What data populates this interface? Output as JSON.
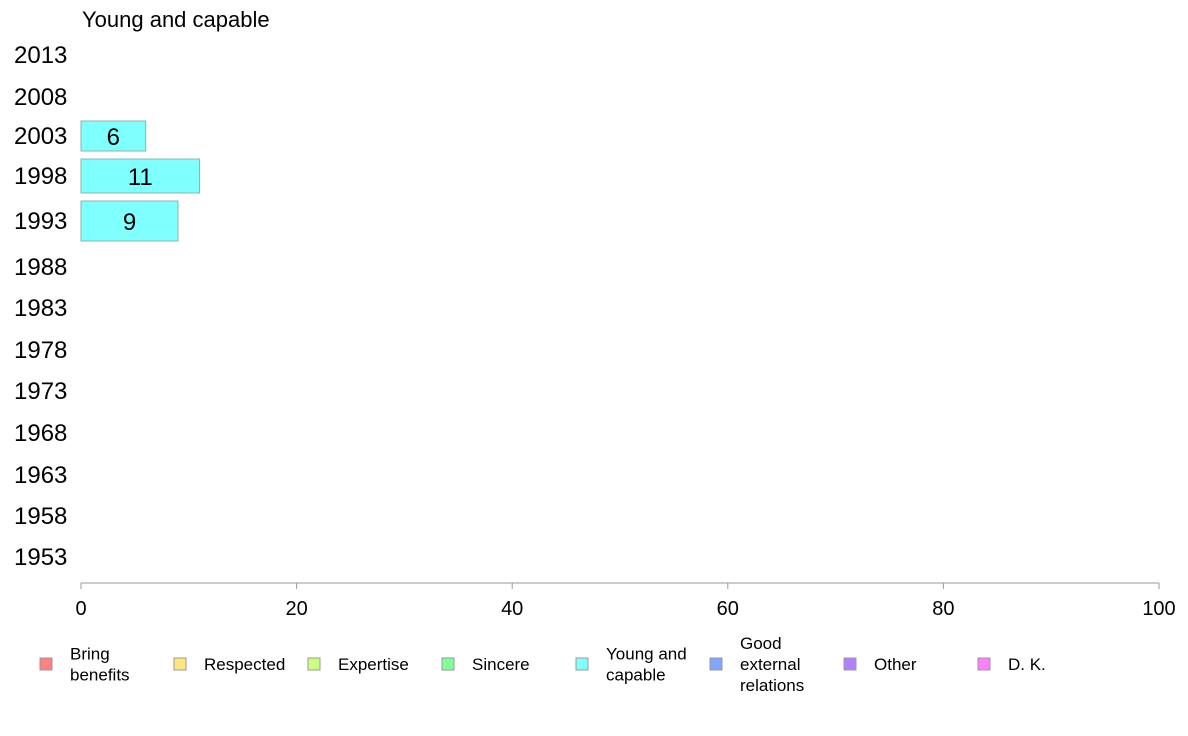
{
  "chart_data": {
    "type": "bar",
    "orientation": "horizontal",
    "title": "Young and capable",
    "categories": [
      "2013",
      "2008",
      "2003",
      "1998",
      "1993",
      "1988",
      "1983",
      "1978",
      "1973",
      "1968",
      "1963",
      "1958",
      "1953"
    ],
    "series": [
      {
        "name": "Young and capable",
        "color": "#80ffff",
        "values": [
          null,
          null,
          6,
          11,
          9,
          null,
          null,
          null,
          null,
          null,
          null,
          null,
          null
        ]
      }
    ],
    "xlim": [
      0,
      100
    ],
    "xticks": [
      0,
      20,
      40,
      60,
      80,
      100
    ],
    "grid": false,
    "legend_position": "bottom",
    "legend": [
      {
        "label": "Bring\nbenefits",
        "color": "#ff8080"
      },
      {
        "label": "Respected",
        "color": "#ffe680"
      },
      {
        "label": "Expertise",
        "color": "#ccff80"
      },
      {
        "label": "Sincere",
        "color": "#80ff99"
      },
      {
        "label": "Young and\ncapable",
        "color": "#80ffff"
      },
      {
        "label": "Good\nexternal\nrelations",
        "color": "#80a6ff"
      },
      {
        "label": "Other",
        "color": "#b380ff"
      },
      {
        "label": "D. K.",
        "color": "#ff80ff"
      }
    ]
  }
}
